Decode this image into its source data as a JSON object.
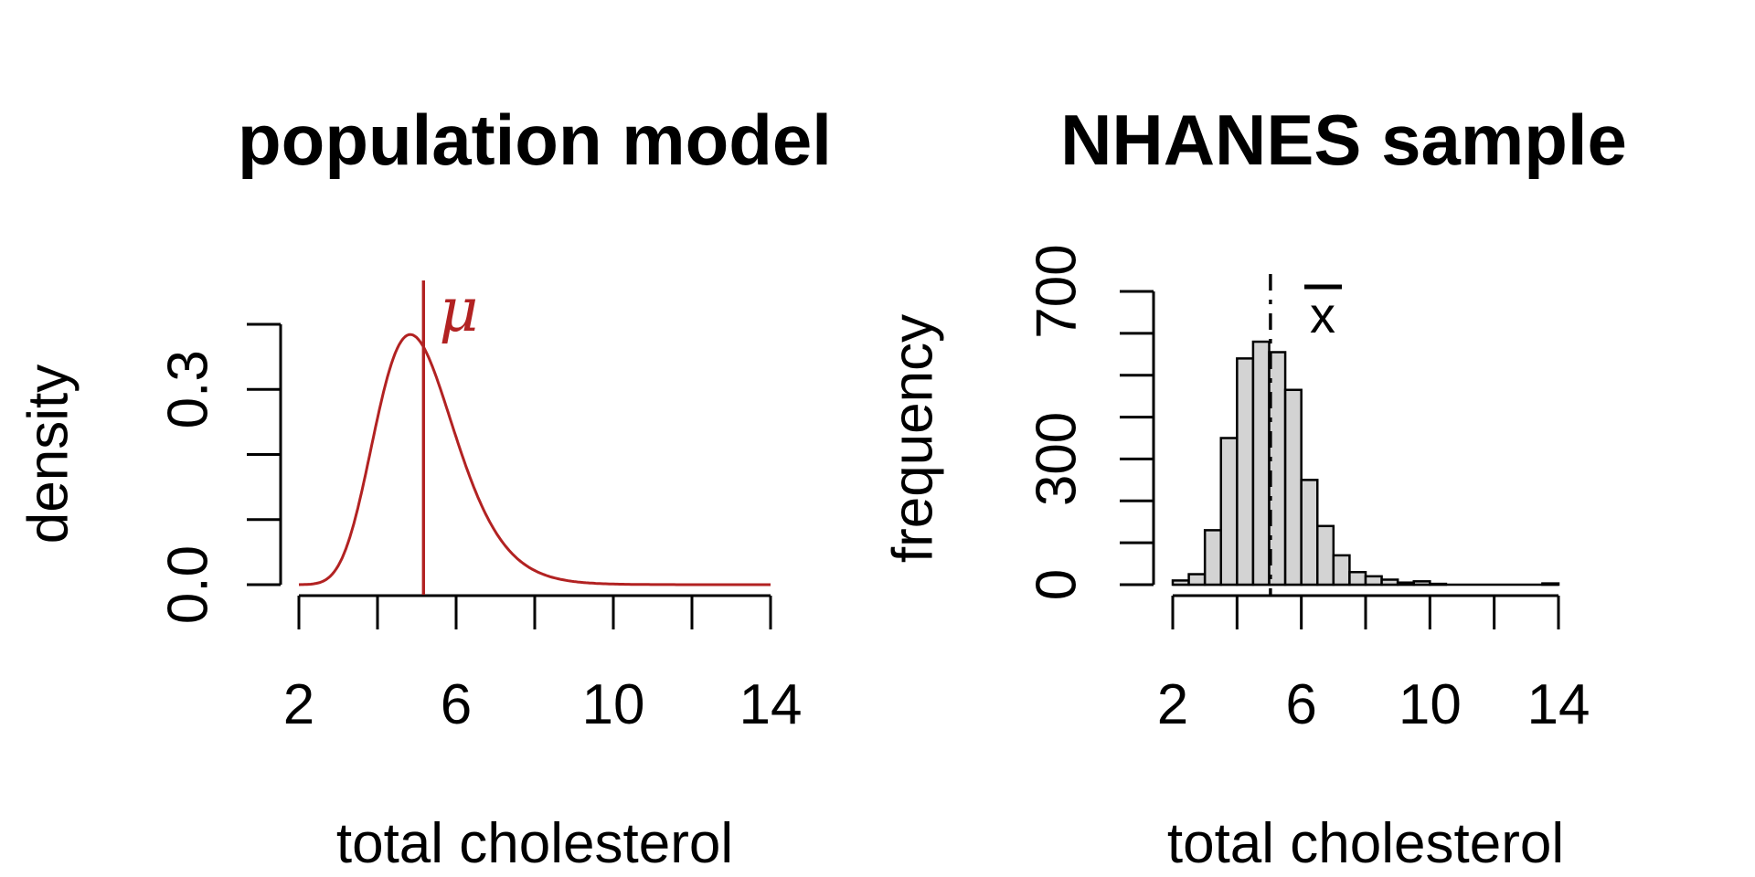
{
  "figure": {
    "background": "#ffffff",
    "text_color": "#000000"
  },
  "chart_data": [
    {
      "type": "line",
      "title": "population model",
      "xlabel": "total cholesterol",
      "ylabel": "density",
      "xlim": [
        2,
        14
      ],
      "ylim": [
        0,
        0.4
      ],
      "x_ticks": [
        {
          "v": 2,
          "label": "2"
        },
        {
          "v": 4,
          "label": ""
        },
        {
          "v": 6,
          "label": "6"
        },
        {
          "v": 8,
          "label": ""
        },
        {
          "v": 10,
          "label": "10"
        },
        {
          "v": 12,
          "label": ""
        },
        {
          "v": 14,
          "label": "14"
        }
      ],
      "y_ticks": [
        {
          "v": 0.0,
          "label": "0.0"
        },
        {
          "v": 0.1,
          "label": ""
        },
        {
          "v": 0.2,
          "label": ""
        },
        {
          "v": 0.3,
          "label": "0.3"
        },
        {
          "v": 0.4,
          "label": ""
        }
      ],
      "curve": {
        "distribution": "lognormal",
        "meanlog": 1.62,
        "sdlog": 0.21,
        "x_min": 2,
        "x_max": 14,
        "peak": {
          "x": 4.84,
          "density": 0.384
        },
        "color": "#B22222"
      },
      "mean_line": {
        "x": 5.17,
        "label": "μ",
        "color": "#B22222",
        "style": "solid"
      }
    },
    {
      "type": "histogram",
      "title": "NHANES sample",
      "xlabel": "total cholesterol",
      "ylabel": "frequency",
      "xlim": [
        2,
        14
      ],
      "ylim": [
        0,
        700
      ],
      "x_ticks": [
        {
          "v": 2,
          "label": "2"
        },
        {
          "v": 4,
          "label": ""
        },
        {
          "v": 6,
          "label": "6"
        },
        {
          "v": 8,
          "label": ""
        },
        {
          "v": 10,
          "label": "10"
        },
        {
          "v": 12,
          "label": ""
        },
        {
          "v": 14,
          "label": "14"
        }
      ],
      "y_ticks": [
        {
          "v": 0,
          "label": "0"
        },
        {
          "v": 100,
          "label": ""
        },
        {
          "v": 200,
          "label": ""
        },
        {
          "v": 300,
          "label": "300"
        },
        {
          "v": 400,
          "label": ""
        },
        {
          "v": 500,
          "label": ""
        },
        {
          "v": 600,
          "label": ""
        },
        {
          "v": 700,
          "label": "700"
        }
      ],
      "bins": {
        "start": 2,
        "width": 0.5,
        "counts": [
          10,
          25,
          130,
          350,
          540,
          580,
          555,
          465,
          250,
          140,
          70,
          30,
          20,
          12,
          5,
          8,
          2,
          1,
          1,
          1,
          1,
          1,
          1,
          3
        ]
      },
      "bar_fill": "#d3d3d3",
      "bar_stroke": "#000000",
      "mean_line": {
        "x": 5.04,
        "label": "x̄",
        "color": "#000000",
        "style": "dotdash"
      }
    }
  ]
}
